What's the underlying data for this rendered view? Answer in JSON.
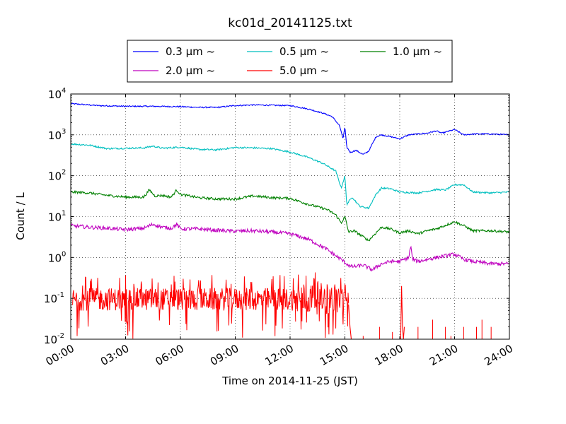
{
  "chart_data": {
    "type": "line",
    "title": "kc01d_20141125.txt",
    "xlabel": "Time on 2014-11-25 (JST)",
    "ylabel": "Count / L",
    "x_unit": "hour of day (JST)",
    "xlim": [
      0,
      24
    ],
    "ylim": [
      0.01,
      10000
    ],
    "yscale": "log",
    "grid": true,
    "legend_position": "top-center",
    "x_ticks": [
      "00:00",
      "03:00",
      "06:00",
      "09:00",
      "12:00",
      "15:00",
      "18:00",
      "21:00",
      "24:00"
    ],
    "y_ticks": [
      {
        "base": "10",
        "exp": "-2",
        "value": 0.01
      },
      {
        "base": "10",
        "exp": "-1",
        "value": 0.1
      },
      {
        "base": "10",
        "exp": "0",
        "value": 1
      },
      {
        "base": "10",
        "exp": "1",
        "value": 10
      },
      {
        "base": "10",
        "exp": "2",
        "value": 100
      },
      {
        "base": "10",
        "exp": "3",
        "value": 1000
      },
      {
        "base": "10",
        "exp": "4",
        "value": 10000
      }
    ],
    "series": [
      {
        "name": "0.3 μm ~",
        "color": "#0000ff",
        "noise": 0.015,
        "x": [
          0,
          1.5,
          3,
          4.5,
          6,
          7,
          8,
          9,
          10,
          11,
          12,
          13,
          13.8,
          14.3,
          14.7,
          14.9,
          15,
          15.1,
          15.3,
          15.6,
          16,
          16.3,
          16.7,
          17,
          17.5,
          18,
          18.5,
          19,
          19.5,
          20,
          20.3,
          20.6,
          21,
          21.5,
          22,
          23,
          24
        ],
        "y": [
          5800,
          5200,
          5000,
          5000,
          4900,
          4700,
          4700,
          5200,
          5400,
          5300,
          5200,
          4300,
          3400,
          2800,
          1700,
          800,
          1600,
          500,
          370,
          420,
          330,
          400,
          900,
          1000,
          900,
          800,
          1000,
          1050,
          1100,
          1250,
          1100,
          1200,
          1350,
          1000,
          1050,
          1050,
          1000
        ]
      },
      {
        "name": "0.5 μm ~",
        "color": "#00bfbf",
        "noise": 0.02,
        "x": [
          0,
          1,
          2,
          3,
          4,
          4.5,
          5,
          6,
          7,
          8,
          9,
          10,
          11,
          12,
          13,
          13.8,
          14.5,
          14.8,
          15,
          15.1,
          15.4,
          15.8,
          16.3,
          16.7,
          17,
          17.5,
          18,
          19,
          20,
          20.5,
          21,
          21.5,
          22,
          23,
          24
        ],
        "y": [
          600,
          560,
          460,
          470,
          480,
          530,
          470,
          500,
          440,
          430,
          490,
          480,
          460,
          380,
          280,
          200,
          130,
          50,
          100,
          20,
          30,
          18,
          16,
          35,
          50,
          48,
          40,
          38,
          46,
          45,
          60,
          60,
          40,
          38,
          40
        ]
      },
      {
        "name": "1.0 μm ~",
        "color": "#008000",
        "noise": 0.03,
        "x": [
          0,
          1,
          2,
          3,
          4,
          4.3,
          4.6,
          5,
          5.5,
          5.8,
          6,
          7,
          8,
          9,
          10,
          11,
          12,
          13,
          14,
          14.5,
          14.8,
          15,
          15.2,
          15.5,
          16,
          16.3,
          16.7,
          17,
          17.5,
          18,
          18.5,
          19,
          19.5,
          20,
          21,
          21.5,
          22,
          23,
          24
        ],
        "y": [
          40,
          38,
          33,
          30,
          30,
          45,
          32,
          33,
          30,
          45,
          35,
          29,
          27,
          27,
          32,
          29,
          28,
          20,
          15,
          11,
          7,
          10,
          4.2,
          4.5,
          3.2,
          2.6,
          4,
          5.5,
          5,
          4,
          4.5,
          3.8,
          4.5,
          5,
          7.5,
          6,
          4.5,
          4.5,
          4.2
        ]
      },
      {
        "name": "2.0 μm ~",
        "color": "#bf00bf",
        "noise": 0.045,
        "x": [
          0,
          1,
          2,
          3,
          4,
          4.5,
          5,
          5.5,
          5.8,
          6,
          7,
          8,
          9,
          10,
          11,
          12,
          13,
          14,
          14.5,
          14.8,
          15,
          15.3,
          15.6,
          16,
          16.5,
          17,
          17.5,
          18,
          18.5,
          18.6,
          18.7,
          19,
          20,
          21,
          21.5,
          22,
          23,
          24
        ],
        "y": [
          6,
          5.5,
          5.2,
          4.8,
          5.2,
          6.5,
          5.5,
          5.2,
          6.5,
          5,
          5,
          4.6,
          4.4,
          4.5,
          4.2,
          3.8,
          2.8,
          1.6,
          1.1,
          0.9,
          0.75,
          0.6,
          0.6,
          0.65,
          0.5,
          0.7,
          0.8,
          0.8,
          1.0,
          2.0,
          0.9,
          0.8,
          1.0,
          1.2,
          0.9,
          0.8,
          0.7,
          0.7
        ]
      },
      {
        "name": "5.0 μm ~",
        "color": "#ff0000",
        "noise_segments": [
          [
            0.1,
            12.3,
            0.1,
            0.15
          ],
          [
            12.3,
            15.2,
            0.08,
            0.2
          ]
        ],
        "segments": [
          {
            "x": [
              15.2,
              15.28,
              15.35
            ],
            "y": [
              0.07,
              0.02,
              0.01
            ]
          },
          {
            "x": [
              18.05,
              18.1,
              18.15,
              18.2,
              18.25
            ],
            "y": [
              0.01,
              0.2,
              0.02,
              0.01,
              0.02
            ]
          }
        ],
        "points": [
          [
            15.6,
            0.01
          ],
          [
            16.0,
            0.012
          ],
          [
            16.4,
            0.01
          ],
          [
            16.9,
            0.02
          ],
          [
            17.3,
            0.01
          ],
          [
            17.6,
            0.015
          ],
          [
            19.0,
            0.02
          ],
          [
            19.5,
            0.01
          ],
          [
            19.8,
            0.03
          ],
          [
            20.1,
            0.01
          ],
          [
            20.5,
            0.02
          ],
          [
            20.8,
            0.012
          ],
          [
            21.5,
            0.02
          ],
          [
            21.8,
            0.01
          ],
          [
            22.2,
            0.02
          ],
          [
            22.5,
            0.03
          ],
          [
            23.0,
            0.02
          ]
        ]
      }
    ]
  }
}
